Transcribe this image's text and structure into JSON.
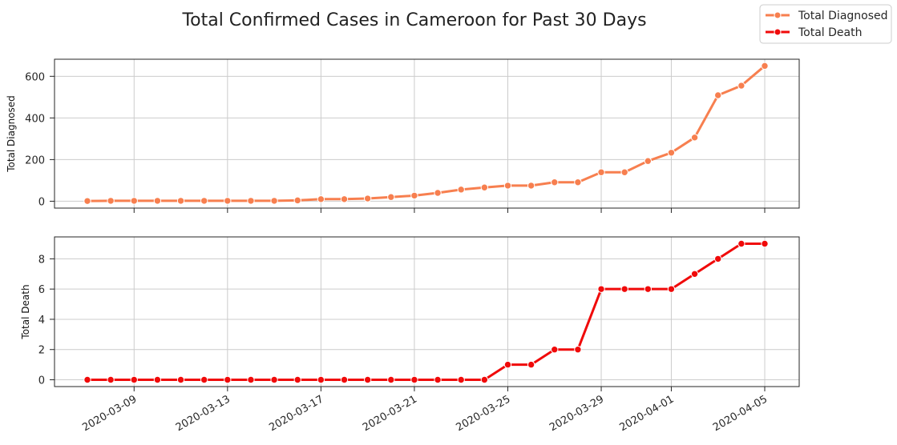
{
  "chart_data": {
    "type": "line",
    "title": "Total Confirmed Cases in Cameroon for Past 30 Days",
    "x_dates": [
      "2020-03-07",
      "2020-03-08",
      "2020-03-09",
      "2020-03-10",
      "2020-03-11",
      "2020-03-12",
      "2020-03-13",
      "2020-03-14",
      "2020-03-15",
      "2020-03-16",
      "2020-03-17",
      "2020-03-18",
      "2020-03-19",
      "2020-03-20",
      "2020-03-21",
      "2020-03-22",
      "2020-03-23",
      "2020-03-24",
      "2020-03-25",
      "2020-03-26",
      "2020-03-27",
      "2020-03-28",
      "2020-03-29",
      "2020-03-30",
      "2020-03-31",
      "2020-04-01",
      "2020-04-02",
      "2020-04-03",
      "2020-04-04",
      "2020-04-05"
    ],
    "xtick_labels": [
      "2020-03-09",
      "2020-03-13",
      "2020-03-17",
      "2020-03-21",
      "2020-03-25",
      "2020-03-29",
      "2020-04-01",
      "2020-04-05"
    ],
    "xtick_index": [
      2,
      6,
      10,
      14,
      18,
      22,
      25,
      29
    ],
    "legend": [
      "Total Diagnosed",
      "Total Death"
    ],
    "series": [
      {
        "name": "Total Diagnosed",
        "ylabel": "Total Diagnosed",
        "color": "#f77f4f",
        "yticks": [
          0,
          200,
          400,
          600
        ],
        "ylim": [
          -33,
          682
        ],
        "values": [
          1,
          2,
          2,
          2,
          2,
          2,
          2,
          2,
          2,
          4,
          10,
          10,
          13,
          20,
          27,
          40,
          56,
          66,
          75,
          75,
          91,
          91,
          139,
          139,
          193,
          233,
          306,
          509,
          555,
          650
        ]
      },
      {
        "name": "Total Death",
        "ylabel": "Total Death",
        "color": "#f00a0a",
        "yticks": [
          0,
          2,
          4,
          6,
          8
        ],
        "ylim": [
          -0.45,
          9.45
        ],
        "values": [
          0,
          0,
          0,
          0,
          0,
          0,
          0,
          0,
          0,
          0,
          0,
          0,
          0,
          0,
          0,
          0,
          0,
          0,
          1,
          1,
          2,
          2,
          6,
          6,
          6,
          6,
          7,
          8,
          9,
          9
        ]
      }
    ]
  }
}
